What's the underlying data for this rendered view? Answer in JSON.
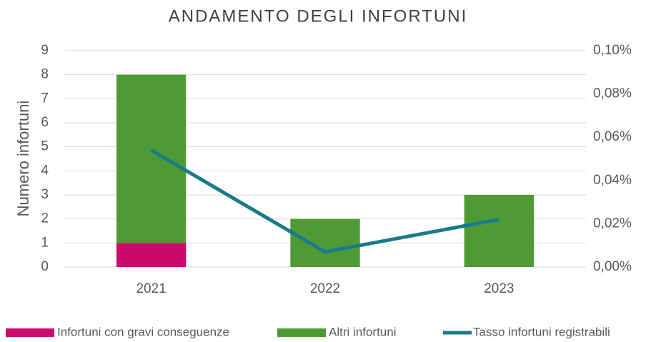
{
  "chart_data": {
    "type": "bar",
    "stacked": true,
    "title": "ANDAMENTO DEGLI INFORTUNI",
    "ylabel": "Numero infortuni",
    "categories": [
      "2021",
      "2022",
      "2023"
    ],
    "series": [
      {
        "name": "Infortuni con gravi conseguenze",
        "color": "#cc0a6e",
        "values": [
          1,
          0,
          0
        ]
      },
      {
        "name": "Altri infortuni",
        "color": "#4e9a35",
        "values": [
          7,
          2,
          3
        ]
      },
      {
        "name": "Tasso infortuni registrabili",
        "type": "line",
        "axis": "y2",
        "color": "#1a7a8a",
        "values": [
          0.054,
          0.007,
          0.022
        ]
      }
    ],
    "ylim": [
      0,
      9
    ],
    "yticks": [
      0,
      1,
      2,
      3,
      4,
      5,
      6,
      7,
      8,
      9
    ],
    "y2lim": [
      0,
      0.1
    ],
    "y2ticks": [
      {
        "value": 0,
        "label": "0,00%"
      },
      {
        "value": 0.02,
        "label": "0,02%"
      },
      {
        "value": 0.04,
        "label": "0,04%"
      },
      {
        "value": 0.06,
        "label": "0,06%"
      },
      {
        "value": 0.08,
        "label": "0,08%"
      },
      {
        "value": 0.1,
        "label": "0,10%"
      }
    ],
    "grid": true,
    "legend": "bottom"
  }
}
